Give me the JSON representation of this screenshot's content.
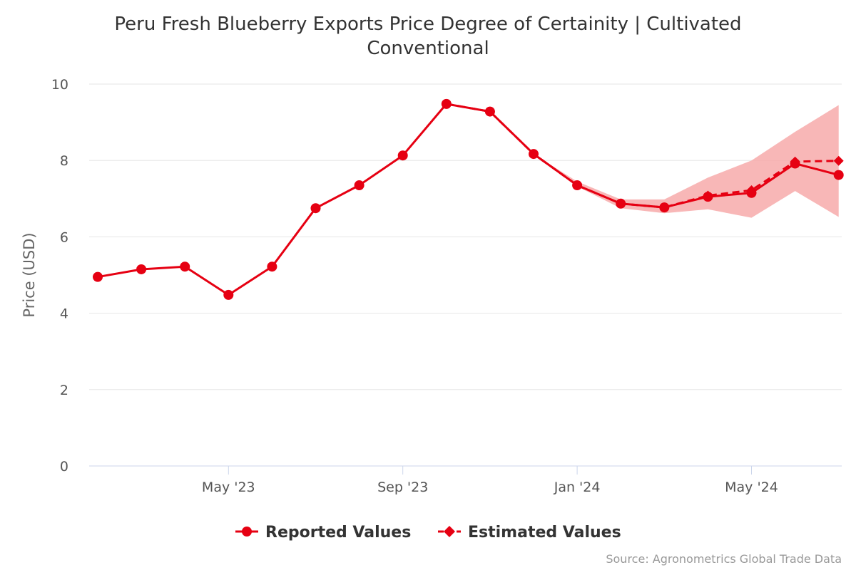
{
  "title_line1": "Peru Fresh Blueberry Exports Price Degree of Certainity | Cultivated",
  "title_line2": "Conventional",
  "credit": "Source: Agronometrics Global Trade Data",
  "colors": {
    "series": "#e60012",
    "band": "#f7aaaa",
    "grid": "#e6e6e6"
  },
  "chart_data": {
    "type": "line",
    "ylabel": "Price (USD)",
    "xlabel": "",
    "ylim": [
      0,
      10
    ],
    "y_ticks": [
      0,
      2,
      4,
      6,
      8,
      10
    ],
    "x_ticks": [
      "May '23",
      "Sep '23",
      "Jan '24",
      "May '24"
    ],
    "x": [
      "2023-02",
      "2023-03",
      "2023-04",
      "2023-05",
      "2023-06",
      "2023-07",
      "2023-08",
      "2023-09",
      "2023-10",
      "2023-11",
      "2023-12",
      "2024-01",
      "2024-02",
      "2024-03",
      "2024-04",
      "2024-05",
      "2024-06",
      "2024-07"
    ],
    "legend_position": "bottom-center",
    "grid": true,
    "series": [
      {
        "name": "Reported Values",
        "marker": "circle",
        "line": "solid",
        "values": [
          4.95,
          5.15,
          5.22,
          4.48,
          5.22,
          6.75,
          7.35,
          8.13,
          9.48,
          9.28,
          8.17,
          7.35,
          6.87,
          6.77,
          7.05,
          7.15,
          7.92,
          7.62
        ]
      },
      {
        "name": "Estimated Values",
        "marker": "diamond",
        "line": "dashed",
        "values": [
          null,
          null,
          null,
          null,
          null,
          null,
          null,
          null,
          9.48,
          9.28,
          8.17,
          7.35,
          6.87,
          6.77,
          7.08,
          7.22,
          7.97,
          7.99
        ]
      }
    ],
    "range": {
      "x": [
        "2023-12",
        "2024-01",
        "2024-02",
        "2024-03",
        "2024-04",
        "2024-05",
        "2024-06",
        "2024-07"
      ],
      "low": [
        8.17,
        7.32,
        6.75,
        6.62,
        6.72,
        6.5,
        7.2,
        6.52
      ],
      "high": [
        8.17,
        7.45,
        6.98,
        6.98,
        7.55,
        8.0,
        8.75,
        9.45
      ]
    }
  }
}
